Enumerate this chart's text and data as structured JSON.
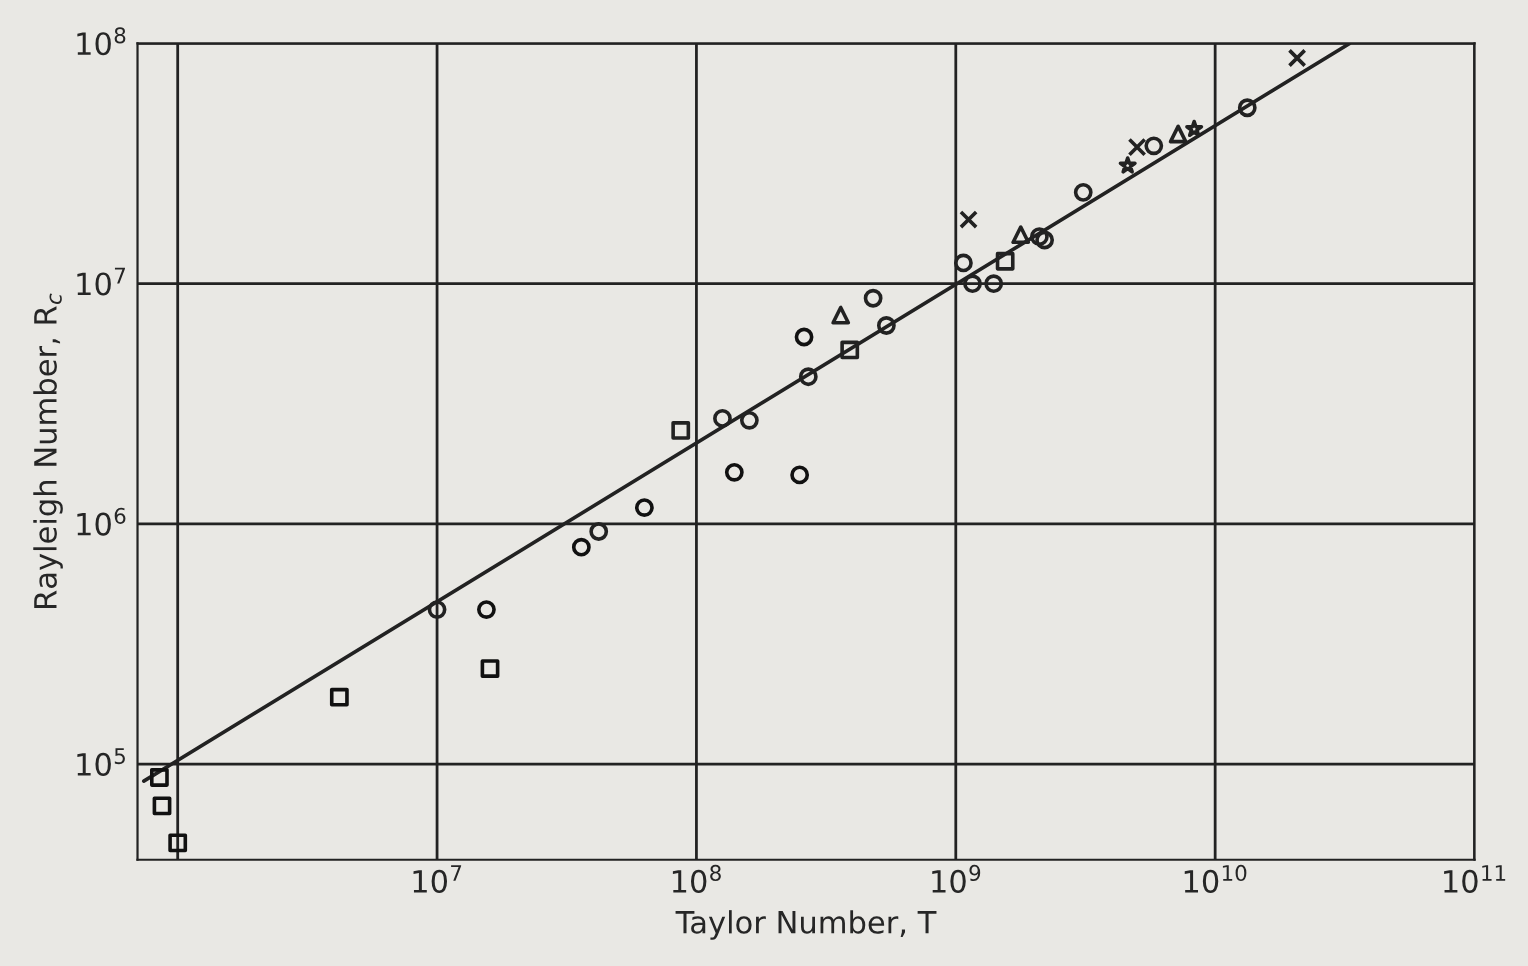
{
  "chart_data": {
    "type": "scatter",
    "xlabel": "Taylor Number, T",
    "ylabel": "Rayleigh Number, R$_{c}$",
    "log": "xy",
    "grid": true,
    "legend": false,
    "xlim": [
      700000,
      100000000000
    ],
    "ylim": [
      40000,
      100000000
    ],
    "xticks": [
      {
        "value": 1000000,
        "label": null
      },
      {
        "value": 10000000,
        "label": "10$^{7}$"
      },
      {
        "value": 100000000,
        "label": "10$^{8}$"
      },
      {
        "value": 1000000000,
        "label": "10$^{9}$"
      },
      {
        "value": 10000000000,
        "label": "10$^{10}$"
      },
      {
        "value": 100000000000,
        "label": "10$^{11}$"
      }
    ],
    "yticks": [
      {
        "value": 100000,
        "label": "10$^{5}$"
      },
      {
        "value": 1000000,
        "label": "10$^{6}$"
      },
      {
        "value": 10000000,
        "label": "10$^{7}$"
      },
      {
        "value": 100000000,
        "label": "10$^{8}$"
      }
    ],
    "series": [
      {
        "type": "line",
        "color": "#222222",
        "marker": "none",
        "line_style": "solid",
        "x": [
          740000,
          33000000000
        ],
        "values": [
          85000,
          100000000
        ]
      },
      {
        "color": "#222222",
        "marker": "circle",
        "x": [
          10000000,
          42000000,
          160000000,
          1400000000,
          5800000000
        ],
        "values": [
          440000,
          930000,
          2700000,
          10000000,
          37500000
        ]
      },
      {
        "color": "#222222",
        "marker": "circle",
        "x": [
          126000000,
          270000000,
          480000000,
          540000000,
          1070000000,
          1160000000,
          2100000000,
          2200000000,
          3100000000,
          13300000000
        ],
        "values": [
          2750000,
          4100000,
          8700000,
          6700000,
          12200000,
          10000000,
          15700000,
          15200000,
          24000000,
          54000000
        ]
      },
      {
        "color": "#111111",
        "marker": "circle",
        "x": [
          15500000,
          36000000,
          63000000,
          140000000,
          250000000,
          260000000
        ],
        "values": [
          440000,
          800000,
          1170000,
          1640000,
          1600000,
          6000000
        ]
      },
      {
        "color": "#222222",
        "marker": "square",
        "x": [
          87000000,
          390000000,
          1550000000
        ],
        "values": [
          2450000,
          5300000,
          12400000
        ]
      },
      {
        "color": "#111111",
        "marker": "square",
        "x": [
          4200000,
          16000000,
          850000,
          870000,
          1000000
        ],
        "values": [
          190000,
          250000,
          88000,
          67000,
          47000
        ]
      },
      {
        "color": "#222222",
        "marker": "triangle",
        "x": [
          360000000,
          1780000000,
          7200000000
        ],
        "values": [
          7400000,
          16000000,
          42000000
        ]
      },
      {
        "color": "#222222",
        "marker": "cross",
        "x": [
          1120000000,
          5000000000,
          20700000000
        ],
        "values": [
          18500000,
          37000000,
          87000000
        ]
      },
      {
        "color": "#222222",
        "marker": "star",
        "x": [
          4600000000,
          8300000000
        ],
        "values": [
          31000000,
          44000000
        ]
      }
    ]
  }
}
